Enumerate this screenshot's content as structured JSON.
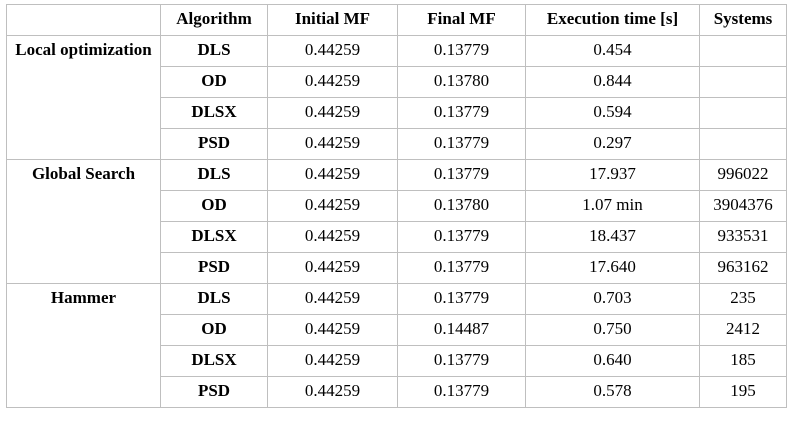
{
  "table": {
    "headers": [
      "",
      "Algorithm",
      "Initial MF",
      "Final MF",
      "Execution time [s]",
      "Systems"
    ],
    "groups": [
      {
        "label": "Local optimization",
        "rows": [
          {
            "algorithm": "DLS",
            "initial_mf": "0.44259",
            "final_mf": "0.13779",
            "time": "0.454",
            "systems": ""
          },
          {
            "algorithm": "OD",
            "initial_mf": "0.44259",
            "final_mf": "0.13780",
            "time": "0.844",
            "systems": ""
          },
          {
            "algorithm": "DLSX",
            "initial_mf": "0.44259",
            "final_mf": "0.13779",
            "time": "0.594",
            "systems": ""
          },
          {
            "algorithm": "PSD",
            "initial_mf": "0.44259",
            "final_mf": "0.13779",
            "time": "0.297",
            "systems": ""
          }
        ]
      },
      {
        "label": "Global Search",
        "rows": [
          {
            "algorithm": "DLS",
            "initial_mf": "0.44259",
            "final_mf": "0.13779",
            "time": "17.937",
            "systems": "996022"
          },
          {
            "algorithm": "OD",
            "initial_mf": "0.44259",
            "final_mf": "0.13780",
            "time": "1.07 min",
            "systems": "3904376"
          },
          {
            "algorithm": "DLSX",
            "initial_mf": "0.44259",
            "final_mf": "0.13779",
            "time": "18.437",
            "systems": "933531"
          },
          {
            "algorithm": "PSD",
            "initial_mf": "0.44259",
            "final_mf": "0.13779",
            "time": "17.640",
            "systems": "963162"
          }
        ]
      },
      {
        "label": "Hammer",
        "rows": [
          {
            "algorithm": "DLS",
            "initial_mf": "0.44259",
            "final_mf": "0.13779",
            "time": "0.703",
            "systems": "235"
          },
          {
            "algorithm": "OD",
            "initial_mf": "0.44259",
            "final_mf": "0.14487",
            "time": "0.750",
            "systems": "2412"
          },
          {
            "algorithm": "DLSX",
            "initial_mf": "0.44259",
            "final_mf": "0.13779",
            "time": "0.640",
            "systems": "185"
          },
          {
            "algorithm": "PSD",
            "initial_mf": "0.44259",
            "final_mf": "0.13779",
            "time": "0.578",
            "systems": "195"
          }
        ]
      }
    ]
  }
}
